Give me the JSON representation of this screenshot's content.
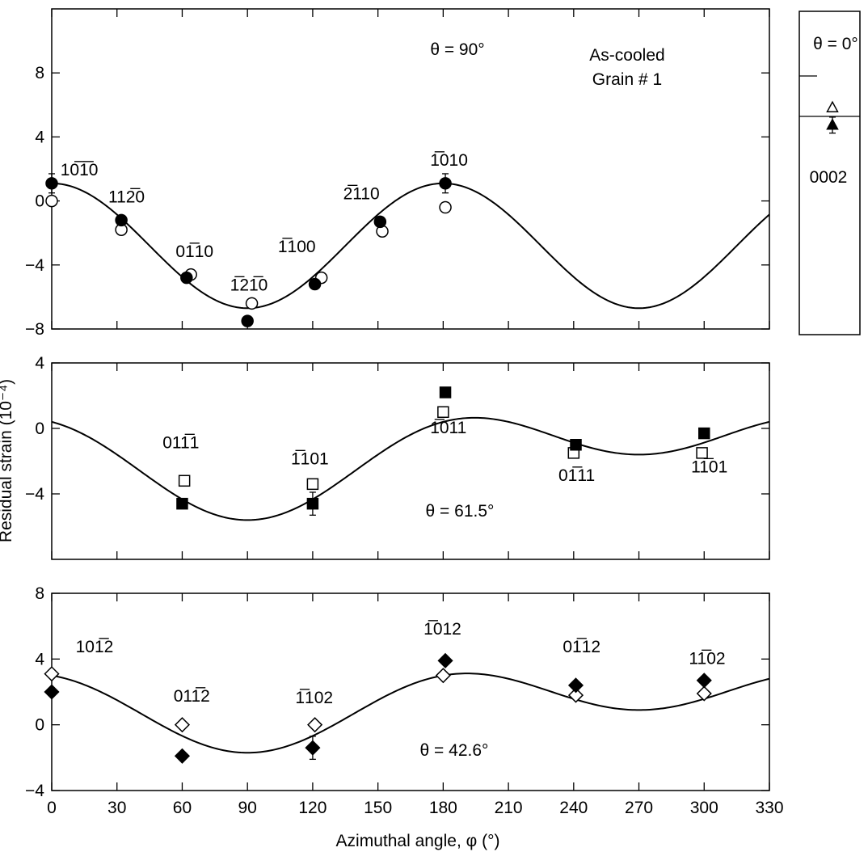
{
  "figure": {
    "ylabel": "Residual strain (10⁻⁴)",
    "xlabel": "Azimuthal angle, φ (°)"
  },
  "chart_data": [
    {
      "id": "top",
      "type": "scatter",
      "xlim": [
        0,
        330
      ],
      "ylim": [
        -8,
        12
      ],
      "yticks": [
        "8",
        "4",
        "0",
        "−4",
        "−8"
      ],
      "ytick_values": [
        8,
        4,
        0,
        -4,
        -8
      ],
      "xticks": [
        0,
        30,
        60,
        90,
        120,
        150,
        180,
        210,
        240,
        270,
        300,
        330
      ],
      "annotations": {
        "theta": "θ = 90°",
        "sample": "As-cooled",
        "grain": "Grain # 1"
      },
      "fit": {
        "mean": -2.8,
        "amp1": 0,
        "amp2": 3.9,
        "phase_deg": 0
      },
      "series": [
        {
          "marker": "filled-circle",
          "x": [
            0,
            32,
            62,
            90,
            121,
            151,
            181
          ],
          "y": [
            1.1,
            -1.2,
            -4.8,
            -7.5,
            -5.2,
            -1.3,
            1.1
          ]
        },
        {
          "marker": "open-circle",
          "x": [
            0,
            32,
            64,
            92,
            124,
            152,
            181
          ],
          "y": [
            0.0,
            -1.8,
            -4.6,
            -6.4,
            -4.8,
            -1.9,
            -0.4
          ]
        }
      ],
      "error_bars": [
        {
          "x": 0,
          "y": 1.1,
          "err": 0.6
        },
        {
          "x": 90,
          "y": -7.5,
          "err": 0.3
        },
        {
          "x": 181,
          "y": 1.1,
          "err": 0.6
        }
      ],
      "point_labels": [
        {
          "text": "10̅1̅0",
          "x": 4,
          "y": 1.6
        },
        {
          "text": "112̅0",
          "x": 26,
          "y": -0.1
        },
        {
          "text": "01̅10",
          "x": 57,
          "y": -3.5
        },
        {
          "text": "1̅21̅0",
          "x": 82,
          "y": -5.6
        },
        {
          "text": "1̅100",
          "x": 104,
          "y": -3.2
        },
        {
          "text": "2̅110",
          "x": 134,
          "y": 0.1
        },
        {
          "text": "1̅010",
          "x": 174,
          "y": 2.2
        }
      ]
    },
    {
      "id": "middle",
      "type": "scatter",
      "xlim": [
        0,
        330
      ],
      "ylim": [
        -8,
        4
      ],
      "yticks": [
        "4",
        "0",
        "−4"
      ],
      "ytick_values": [
        4,
        0,
        -4
      ],
      "xticks": [
        0,
        30,
        60,
        90,
        120,
        150,
        180,
        210,
        240,
        270,
        300,
        330
      ],
      "annotations": {
        "theta": "θ = 61.5°"
      },
      "fit": {
        "mean": -1.6,
        "amp1": -2.0,
        "amp2": 2.0,
        "phase_deg": 0
      },
      "series": [
        {
          "marker": "filled-square",
          "x": [
            60,
            120,
            181,
            241,
            300
          ],
          "y": [
            -4.6,
            -4.6,
            2.2,
            -1.0,
            -0.3
          ]
        },
        {
          "marker": "open-square",
          "x": [
            61,
            120,
            180,
            240,
            299
          ],
          "y": [
            -3.2,
            -3.4,
            1.0,
            -1.5,
            -1.5
          ]
        }
      ],
      "error_bars": [
        {
          "x": 120,
          "y": -4.6,
          "err": 0.7
        }
      ],
      "point_labels": [
        {
          "text": "011̅1",
          "x": 51,
          "y": -1.2
        },
        {
          "text": "1̅101",
          "x": 110,
          "y": -2.2
        },
        {
          "text": "1̅011",
          "x": 174,
          "y": -0.3
        },
        {
          "text": "01̅11",
          "x": 233,
          "y": -3.2
        },
        {
          "text": "11̅01",
          "x": 294,
          "y": -2.7
        }
      ]
    },
    {
      "id": "bottom",
      "type": "scatter",
      "xlim": [
        0,
        330
      ],
      "ylim": [
        -4,
        8
      ],
      "yticks": [
        "8",
        "4",
        "0",
        "−4"
      ],
      "ytick_values": [
        8,
        4,
        0,
        -4
      ],
      "xticks": [
        0,
        30,
        60,
        90,
        120,
        150,
        180,
        210,
        240,
        270,
        300,
        330
      ],
      "xticklabels": [
        "0",
        "30",
        "60",
        "90",
        "120",
        "150",
        "180",
        "210",
        "240",
        "270",
        "300",
        "330"
      ],
      "annotations": {
        "theta": "θ = 42.6°"
      },
      "fit": {
        "mean": 1.3,
        "amp1": -1.3,
        "amp2": 1.7,
        "phase_deg": 0
      },
      "series": [
        {
          "marker": "filled-diamond",
          "x": [
            0,
            60,
            120,
            181,
            241,
            300
          ],
          "y": [
            2.0,
            -1.9,
            -1.4,
            3.9,
            2.4,
            2.7
          ]
        },
        {
          "marker": "open-diamond",
          "x": [
            0,
            60,
            121,
            180,
            241,
            300
          ],
          "y": [
            3.1,
            0.0,
            0.0,
            3.0,
            1.8,
            1.9
          ]
        }
      ],
      "error_bars": [
        {
          "x": 120,
          "y": -1.4,
          "err": 0.7
        }
      ],
      "point_labels": [
        {
          "text": "101̅2",
          "x": 11,
          "y": 4.4
        },
        {
          "text": "011̅2",
          "x": 56,
          "y": 1.4
        },
        {
          "text": "1̅102",
          "x": 112,
          "y": 1.3
        },
        {
          "text": "1̅012",
          "x": 171,
          "y": 5.5
        },
        {
          "text": "01̅12",
          "x": 235,
          "y": 4.4
        },
        {
          "text": "11̅02",
          "x": 293,
          "y": 3.7
        }
      ]
    },
    {
      "id": "side",
      "type": "scatter",
      "annotations": {
        "theta": "θ = 0°",
        "label": "0002"
      },
      "series": [
        {
          "marker": "open-triangle",
          "y": 5.8
        },
        {
          "marker": "filled-triangle",
          "y": 4.6
        }
      ],
      "error_bars": [
        {
          "y": 4.6,
          "err": 0.55
        }
      ]
    }
  ]
}
